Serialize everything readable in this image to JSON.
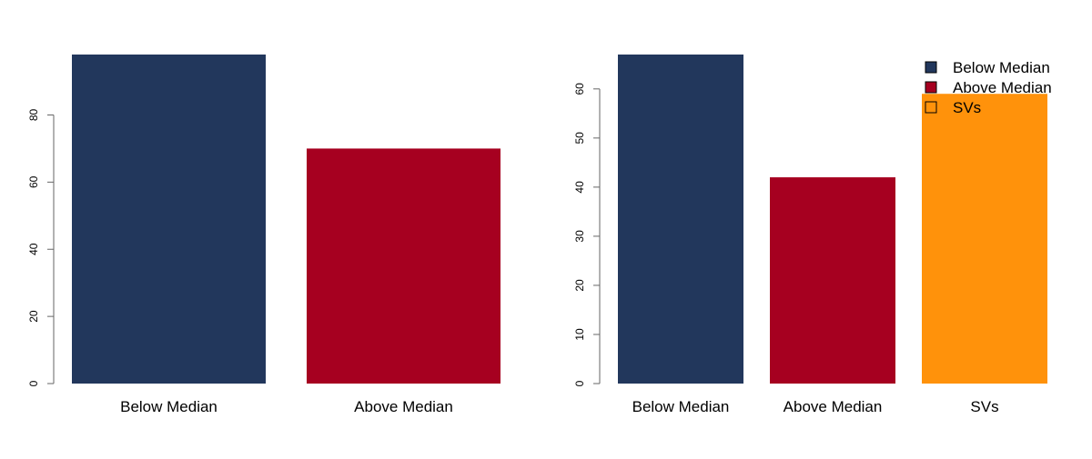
{
  "chart_data": [
    {
      "type": "bar",
      "categories": [
        "Below Median",
        "Above Median"
      ],
      "values": [
        98,
        70
      ],
      "colors": [
        "#22375C",
        "#A60020"
      ],
      "yticks": [
        0,
        20,
        40,
        60,
        80
      ],
      "ylim": [
        0,
        98
      ],
      "title": "",
      "xlabel": "",
      "ylabel": "",
      "grid": false
    },
    {
      "type": "bar",
      "categories": [
        "Below Median",
        "Above Median",
        "SVs"
      ],
      "values": [
        67,
        42,
        59
      ],
      "colors": [
        "#22375C",
        "#A60020",
        "#FF920B"
      ],
      "yticks": [
        0,
        10,
        20,
        30,
        40,
        50,
        60
      ],
      "ylim": [
        0,
        67
      ],
      "title": "",
      "xlabel": "",
      "ylabel": "",
      "grid": false,
      "legend": {
        "placement": "top-right",
        "entries": [
          {
            "label": "Below Median",
            "fill": "#22375C"
          },
          {
            "label": "Above Median",
            "fill": "#A60020"
          },
          {
            "label": "SVs",
            "fill": "none"
          }
        ]
      }
    }
  ]
}
